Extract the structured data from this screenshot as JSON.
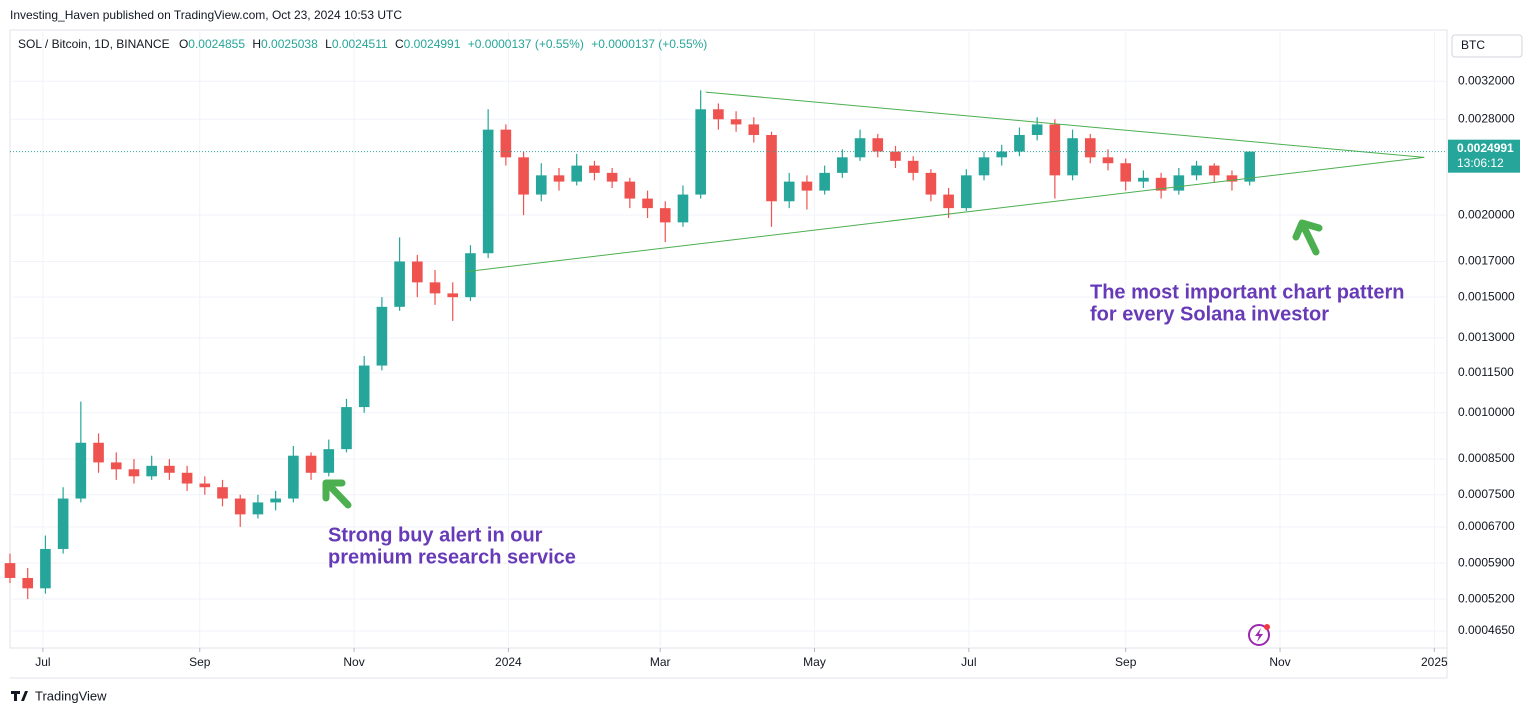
{
  "header": {
    "publisher": "Investing_Haven published on TradingView.com, Oct 23, 2024 10:53 UTC",
    "symbol": "SOL / Bitcoin, 1D, BINANCE",
    "ohlc": [
      {
        "key": "O",
        "value": "0.0024855"
      },
      {
        "key": "H",
        "value": "0.0025038"
      },
      {
        "key": "L",
        "value": "0.0024511"
      },
      {
        "key": "C",
        "value": "0.0024991"
      }
    ],
    "change": "+0.0000137 (+0.55%)",
    "change2": "+0.0000137 (+0.55%)"
  },
  "footer": "TradingView",
  "chart_data": {
    "type": "candlestick",
    "log_scale": true,
    "grid": true,
    "up_color": "#26a69a",
    "down_color": "#ef5350",
    "currency": "BTC",
    "x": [
      0,
      7,
      14,
      21,
      28,
      35,
      42,
      49,
      56,
      63,
      70,
      77,
      84,
      91,
      98,
      105,
      112,
      119,
      126,
      133,
      140,
      147,
      154,
      161,
      168,
      175,
      182,
      189,
      196,
      203,
      210,
      217,
      224,
      231,
      238,
      245,
      252,
      259,
      266,
      273,
      280,
      287,
      294,
      301,
      308,
      315,
      322,
      329,
      336,
      343,
      350,
      357,
      364,
      371,
      378,
      385,
      392,
      399,
      406,
      413,
      420,
      427,
      434,
      441,
      448,
      455,
      462,
      469,
      476,
      483,
      490
    ],
    "open": [
      0.00059,
      0.00056,
      0.00054,
      0.00062,
      0.00074,
      0.0009,
      0.00084,
      0.00082,
      0.0008,
      0.00083,
      0.00081,
      0.00078,
      0.00077,
      0.00074,
      0.0007,
      0.00073,
      0.00074,
      0.00086,
      0.00081,
      0.00088,
      0.00102,
      0.00118,
      0.00145,
      0.0017,
      0.00158,
      0.00152,
      0.0015,
      0.00175,
      0.0027,
      0.00245,
      0.00215,
      0.0023,
      0.00225,
      0.00238,
      0.00232,
      0.00225,
      0.00212,
      0.00205,
      0.00195,
      0.00215,
      0.0029,
      0.0028,
      0.00275,
      0.00265,
      0.0021,
      0.00225,
      0.00218,
      0.00232,
      0.00245,
      0.00262,
      0.0025,
      0.00242,
      0.00232,
      0.00215,
      0.00205,
      0.0023,
      0.00245,
      0.0025,
      0.00265,
      0.00275,
      0.0023,
      0.00262,
      0.00245,
      0.0024,
      0.00225,
      0.00228,
      0.00218,
      0.0023,
      0.00238,
      0.0023,
      0.00225
    ],
    "high": [
      0.00061,
      0.00058,
      0.00065,
      0.00077,
      0.00104,
      0.00093,
      0.00087,
      0.00085,
      0.00086,
      0.00085,
      0.00083,
      0.0008,
      0.00079,
      0.00075,
      0.00075,
      0.00076,
      0.00089,
      0.00087,
      0.00091,
      0.00105,
      0.00122,
      0.0015,
      0.00185,
      0.00174,
      0.00165,
      0.00158,
      0.0018,
      0.0029,
      0.00275,
      0.0025,
      0.0024,
      0.00236,
      0.00248,
      0.00242,
      0.00236,
      0.00228,
      0.00218,
      0.0021,
      0.00222,
      0.0031,
      0.00296,
      0.00288,
      0.00282,
      0.00268,
      0.00232,
      0.0023,
      0.00238,
      0.00252,
      0.0027,
      0.00266,
      0.00255,
      0.00246,
      0.00235,
      0.0022,
      0.00235,
      0.0025,
      0.00256,
      0.00272,
      0.00282,
      0.0028,
      0.0027,
      0.00266,
      0.00252,
      0.00244,
      0.00234,
      0.00232,
      0.00236,
      0.00242,
      0.0024,
      0.00234,
      0.0025038
    ],
    "low": [
      0.00055,
      0.00052,
      0.00053,
      0.00061,
      0.00073,
      0.00081,
      0.00079,
      0.00078,
      0.00079,
      0.00079,
      0.00076,
      0.00075,
      0.00072,
      0.00067,
      0.00069,
      0.00071,
      0.00073,
      0.00079,
      0.0008,
      0.00087,
      0.001,
      0.00116,
      0.00143,
      0.0015,
      0.00146,
      0.00138,
      0.00148,
      0.00172,
      0.00238,
      0.002,
      0.0021,
      0.00218,
      0.00222,
      0.00226,
      0.0022,
      0.00205,
      0.00198,
      0.00182,
      0.00192,
      0.00212,
      0.0027,
      0.00268,
      0.00258,
      0.00192,
      0.00205,
      0.00204,
      0.00215,
      0.00228,
      0.00242,
      0.00245,
      0.00236,
      0.00226,
      0.0021,
      0.00198,
      0.00203,
      0.00226,
      0.00238,
      0.00246,
      0.0026,
      0.00212,
      0.00226,
      0.0024,
      0.00234,
      0.00218,
      0.0022,
      0.00212,
      0.00215,
      0.00226,
      0.00224,
      0.00218,
      0.00222
    ],
    "close": [
      0.00056,
      0.00054,
      0.00062,
      0.00074,
      0.0009,
      0.00084,
      0.00082,
      0.0008,
      0.00083,
      0.00081,
      0.00078,
      0.00077,
      0.00074,
      0.0007,
      0.00073,
      0.00074,
      0.00086,
      0.00081,
      0.00088,
      0.00102,
      0.00118,
      0.00145,
      0.0017,
      0.00158,
      0.00152,
      0.0015,
      0.00175,
      0.0027,
      0.00245,
      0.00215,
      0.0023,
      0.00225,
      0.00238,
      0.00232,
      0.00225,
      0.00212,
      0.00205,
      0.00195,
      0.00215,
      0.0029,
      0.0028,
      0.00275,
      0.00265,
      0.0021,
      0.00225,
      0.00218,
      0.00232,
      0.00245,
      0.00262,
      0.0025,
      0.00242,
      0.00232,
      0.00215,
      0.00205,
      0.0023,
      0.00245,
      0.0025,
      0.00265,
      0.00275,
      0.0023,
      0.00262,
      0.00245,
      0.0024,
      0.00225,
      0.00228,
      0.00218,
      0.0023,
      0.00238,
      0.0023,
      0.00225,
      0.0024991
    ],
    "xlim": [
      0,
      568
    ],
    "ylim": [
      0.000438,
      0.00383
    ],
    "xticks": [
      {
        "value": 13,
        "label": "Jul"
      },
      {
        "value": 75,
        "label": "Sep"
      },
      {
        "value": 136,
        "label": "Nov"
      },
      {
        "value": 197,
        "label": "2024"
      },
      {
        "value": 257,
        "label": "Mar"
      },
      {
        "value": 318,
        "label": "May"
      },
      {
        "value": 379,
        "label": "Jul"
      },
      {
        "value": 441,
        "label": "Sep"
      },
      {
        "value": 502,
        "label": "Nov"
      },
      {
        "value": 563,
        "label": "2025"
      }
    ],
    "yticks": [
      {
        "value": 0.0032,
        "label": "0.0032000"
      },
      {
        "value": 0.0028,
        "label": "0.0028000"
      },
      {
        "value": 0.002,
        "label": "0.0020000"
      },
      {
        "value": 0.0017,
        "label": "0.0017000"
      },
      {
        "value": 0.0015,
        "label": "0.0015000"
      },
      {
        "value": 0.0013,
        "label": "0.0013000"
      },
      {
        "value": 0.00115,
        "label": "0.0011500"
      },
      {
        "value": 0.001,
        "label": "0.0010000"
      },
      {
        "value": 0.00085,
        "label": "0.0008500"
      },
      {
        "value": 0.00075,
        "label": "0.0007500"
      },
      {
        "value": 0.00067,
        "label": "0.0006700"
      },
      {
        "value": 0.00059,
        "label": "0.0005900"
      },
      {
        "value": 0.00052,
        "label": "0.0005200"
      },
      {
        "value": 0.000465,
        "label": "0.0004650"
      }
    ],
    "last_price": 0.0024991,
    "countdown": "13:06:12",
    "trendlines": [
      {
        "color": "#4caf50",
        "x": [
          275,
          559
        ],
        "values": [
          0.00308,
          0.00245
        ]
      },
      {
        "color": "#4caf50",
        "x": [
          180,
          559
        ],
        "values": [
          0.00164,
          0.00245
        ]
      }
    ],
    "annotations": [
      [
        "Strong buy alert in our",
        "premium research service"
      ],
      [
        "The most important chart pattern",
        "for every Solana investor"
      ]
    ]
  }
}
